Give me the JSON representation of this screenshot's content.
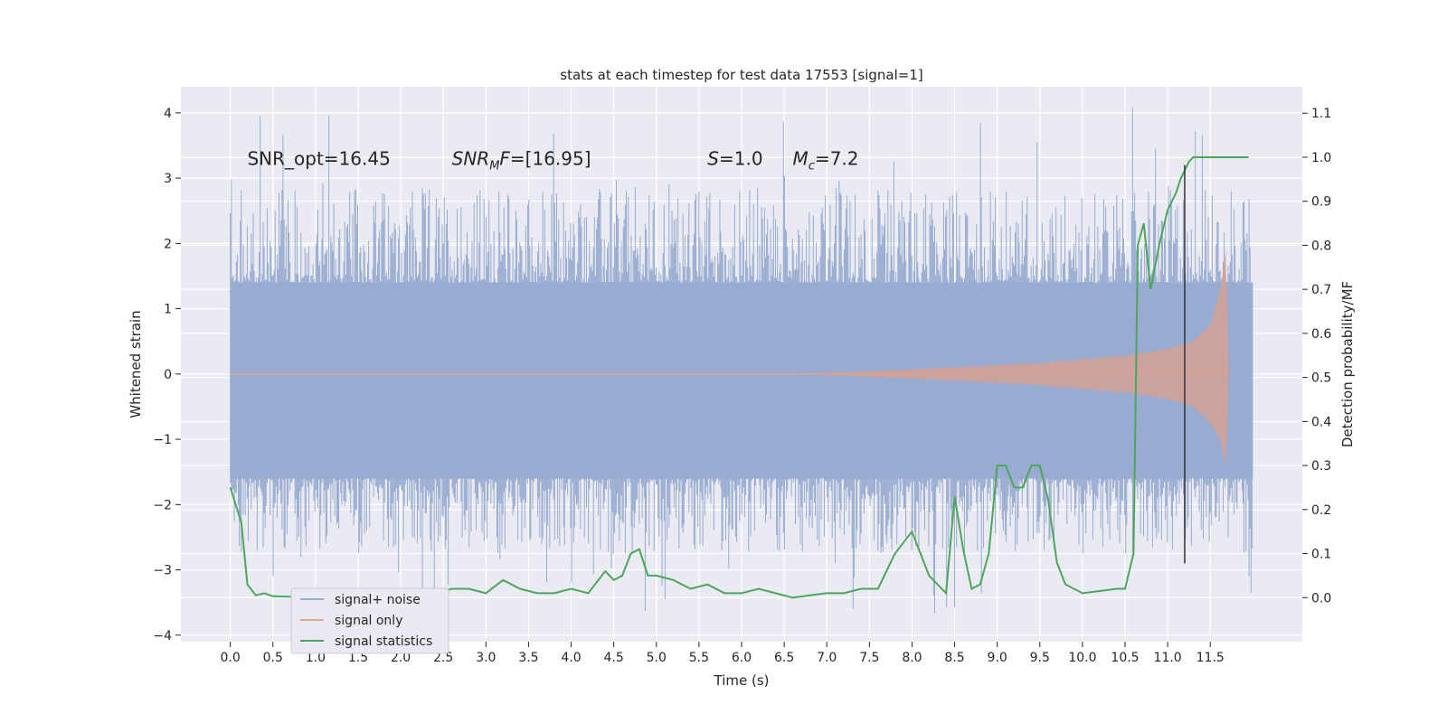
{
  "chart_data": {
    "type": "line",
    "title": "stats at each timestep for test data 17553 [signal=1]",
    "xlabel": "Time (s)",
    "ylabel": "Whitened strain",
    "y2label": "Detection probability/MF",
    "xlim": [
      -0.58,
      12.58
    ],
    "ylim": [
      -4.1,
      4.4
    ],
    "y2lim": [
      -0.1,
      1.16
    ],
    "xticks": [
      0.0,
      0.5,
      1.0,
      1.5,
      2.0,
      2.5,
      3.0,
      3.5,
      4.0,
      4.5,
      5.0,
      5.5,
      6.0,
      6.5,
      7.0,
      7.5,
      8.0,
      8.5,
      9.0,
      9.5,
      10.0,
      10.5,
      11.0,
      11.5
    ],
    "xtick_labels": [
      "0.0",
      "0.5",
      "1.0",
      "1.5",
      "2.0",
      "2.5",
      "3.0",
      "3.5",
      "4.0",
      "4.5",
      "5.0",
      "5.5",
      "6.0",
      "6.5",
      "7.0",
      "7.5",
      "8.0",
      "8.5",
      "9.0",
      "9.5",
      "10.0",
      "10.5",
      "11.0",
      "11.5"
    ],
    "yticks": [
      -4,
      -3,
      -2,
      -1,
      0,
      1,
      2,
      3,
      4
    ],
    "ytick_labels": [
      "−4",
      "−3",
      "−2",
      "−1",
      "0",
      "1",
      "2",
      "3",
      "4"
    ],
    "y2ticks": [
      0.0,
      0.1,
      0.2,
      0.3,
      0.4,
      0.5,
      0.6,
      0.7,
      0.8,
      0.9,
      1.0,
      1.1
    ],
    "y2tick_labels": [
      "0.0",
      "0.1",
      "0.2",
      "0.3",
      "0.4",
      "0.5",
      "0.6",
      "0.7",
      "0.8",
      "0.9",
      "1.0",
      "1.1"
    ],
    "series": [
      {
        "name": "signal+ noise",
        "color": "#98abd0",
        "x_range": [
          0.0,
          12.0
        ],
        "band": [
          -1.6,
          1.4
        ],
        "spike_max": [
          -3.7,
          4.1
        ]
      },
      {
        "name": "signal only",
        "color": "#d4a095",
        "envelope_x": [
          0.0,
          6.5,
          7.5,
          8.5,
          9.5,
          10.5,
          11.0,
          11.3,
          11.5,
          11.62,
          11.68,
          11.72
        ],
        "envelope_upper": [
          0.0,
          0.0,
          0.04,
          0.1,
          0.17,
          0.28,
          0.38,
          0.5,
          0.75,
          1.3,
          1.9,
          0.0
        ],
        "envelope_lower": [
          0.0,
          0.0,
          -0.04,
          -0.1,
          -0.17,
          -0.28,
          -0.38,
          -0.5,
          -0.75,
          -1.0,
          -1.4,
          0.0
        ]
      },
      {
        "name": "signal statistics",
        "color": "#4ea65c",
        "x": [
          0.0,
          0.13,
          0.2,
          0.3,
          0.4,
          0.5,
          0.7,
          1.0,
          1.2,
          1.4,
          1.6,
          1.8,
          2.0,
          2.2,
          2.4,
          2.6,
          2.8,
          3.0,
          3.2,
          3.4,
          3.6,
          3.8,
          4.0,
          4.2,
          4.4,
          4.5,
          4.6,
          4.7,
          4.8,
          4.9,
          5.0,
          5.2,
          5.4,
          5.6,
          5.8,
          6.0,
          6.2,
          6.4,
          6.6,
          6.8,
          7.0,
          7.2,
          7.4,
          7.6,
          7.8,
          8.0,
          8.2,
          8.4,
          8.5,
          8.6,
          8.7,
          8.8,
          8.9,
          9.0,
          9.1,
          9.2,
          9.3,
          9.4,
          9.5,
          9.6,
          9.7,
          9.8,
          9.9,
          10.0,
          10.2,
          10.4,
          10.5,
          10.6,
          10.65,
          10.72,
          10.8,
          10.85,
          10.9,
          11.0,
          11.1,
          11.15,
          11.25,
          11.3,
          11.35,
          11.5,
          11.7,
          11.95
        ],
        "y": [
          0.25,
          0.17,
          0.03,
          0.005,
          0.01,
          0.003,
          0.002,
          0.002,
          0.0,
          0.005,
          0.002,
          0.01,
          0.01,
          0.01,
          0.01,
          0.02,
          0.02,
          0.01,
          0.04,
          0.02,
          0.01,
          0.01,
          0.02,
          0.01,
          0.06,
          0.04,
          0.05,
          0.1,
          0.11,
          0.05,
          0.05,
          0.04,
          0.02,
          0.03,
          0.01,
          0.01,
          0.02,
          0.01,
          0.0,
          0.005,
          0.01,
          0.01,
          0.02,
          0.02,
          0.1,
          0.15,
          0.05,
          0.01,
          0.23,
          0.11,
          0.02,
          0.03,
          0.1,
          0.3,
          0.3,
          0.25,
          0.25,
          0.3,
          0.3,
          0.22,
          0.08,
          0.03,
          0.02,
          0.01,
          0.015,
          0.02,
          0.02,
          0.1,
          0.8,
          0.85,
          0.7,
          0.75,
          0.8,
          0.88,
          0.92,
          0.95,
          0.99,
          1.0,
          1.0,
          1.0,
          1.0,
          1.0
        ],
        "axis": "right"
      }
    ],
    "vline": {
      "x": 11.2,
      "ymin": -2.9,
      "ymax": 3.2,
      "color": "#333333"
    },
    "annotations": [
      {
        "id": "snr-opt",
        "text": "SNR_opt=16.45",
        "x": 0.2,
        "y": 3.2
      },
      {
        "id": "snr-mf",
        "text_base": "SNR",
        "text_sub": "M",
        "text_rest": "F=[16.95]",
        "x": 2.6,
        "y": 3.2
      },
      {
        "id": "s-val",
        "text_var": "S",
        "text_rest": "=1.0",
        "x": 5.6,
        "y": 3.2
      },
      {
        "id": "mc-val",
        "text_var": "M",
        "text_sub": "c",
        "text_rest": "=7.2",
        "x": 6.6,
        "y": 3.2
      }
    ],
    "legend": {
      "placement": "lower-left",
      "items": [
        "signal+ noise",
        "signal only",
        "signal statistics"
      ]
    },
    "grid": true
  }
}
